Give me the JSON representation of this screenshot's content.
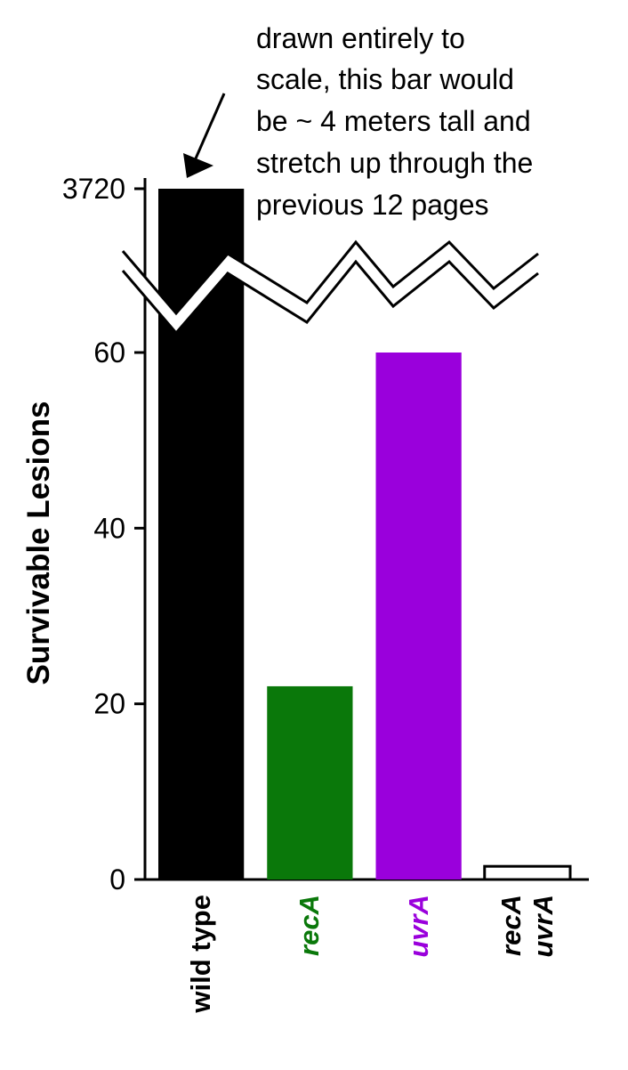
{
  "chart_data": {
    "type": "bar",
    "annotation": [
      "drawn entirely to",
      "scale, this bar would",
      "be ~ 4 meters tall and",
      "stretch up through the",
      "previous 12 pages"
    ],
    "y_label": "Survivable Lesions",
    "categories": [
      "wild type",
      "recA",
      "uvrA",
      "recA uvrA"
    ],
    "values": [
      3720,
      22,
      60,
      1.5
    ],
    "colors": [
      "#000000",
      "#0a780a",
      "#9a00dc",
      "#ffffff"
    ],
    "label_colors": [
      "#000000",
      "#0a780a",
      "#9a00dc",
      "#000000"
    ],
    "label_italic": [
      false,
      true,
      true,
      true
    ],
    "ylim": [
      0,
      3720
    ],
    "yticks": [
      0,
      20,
      40,
      60,
      3720
    ],
    "axis_break": true
  }
}
